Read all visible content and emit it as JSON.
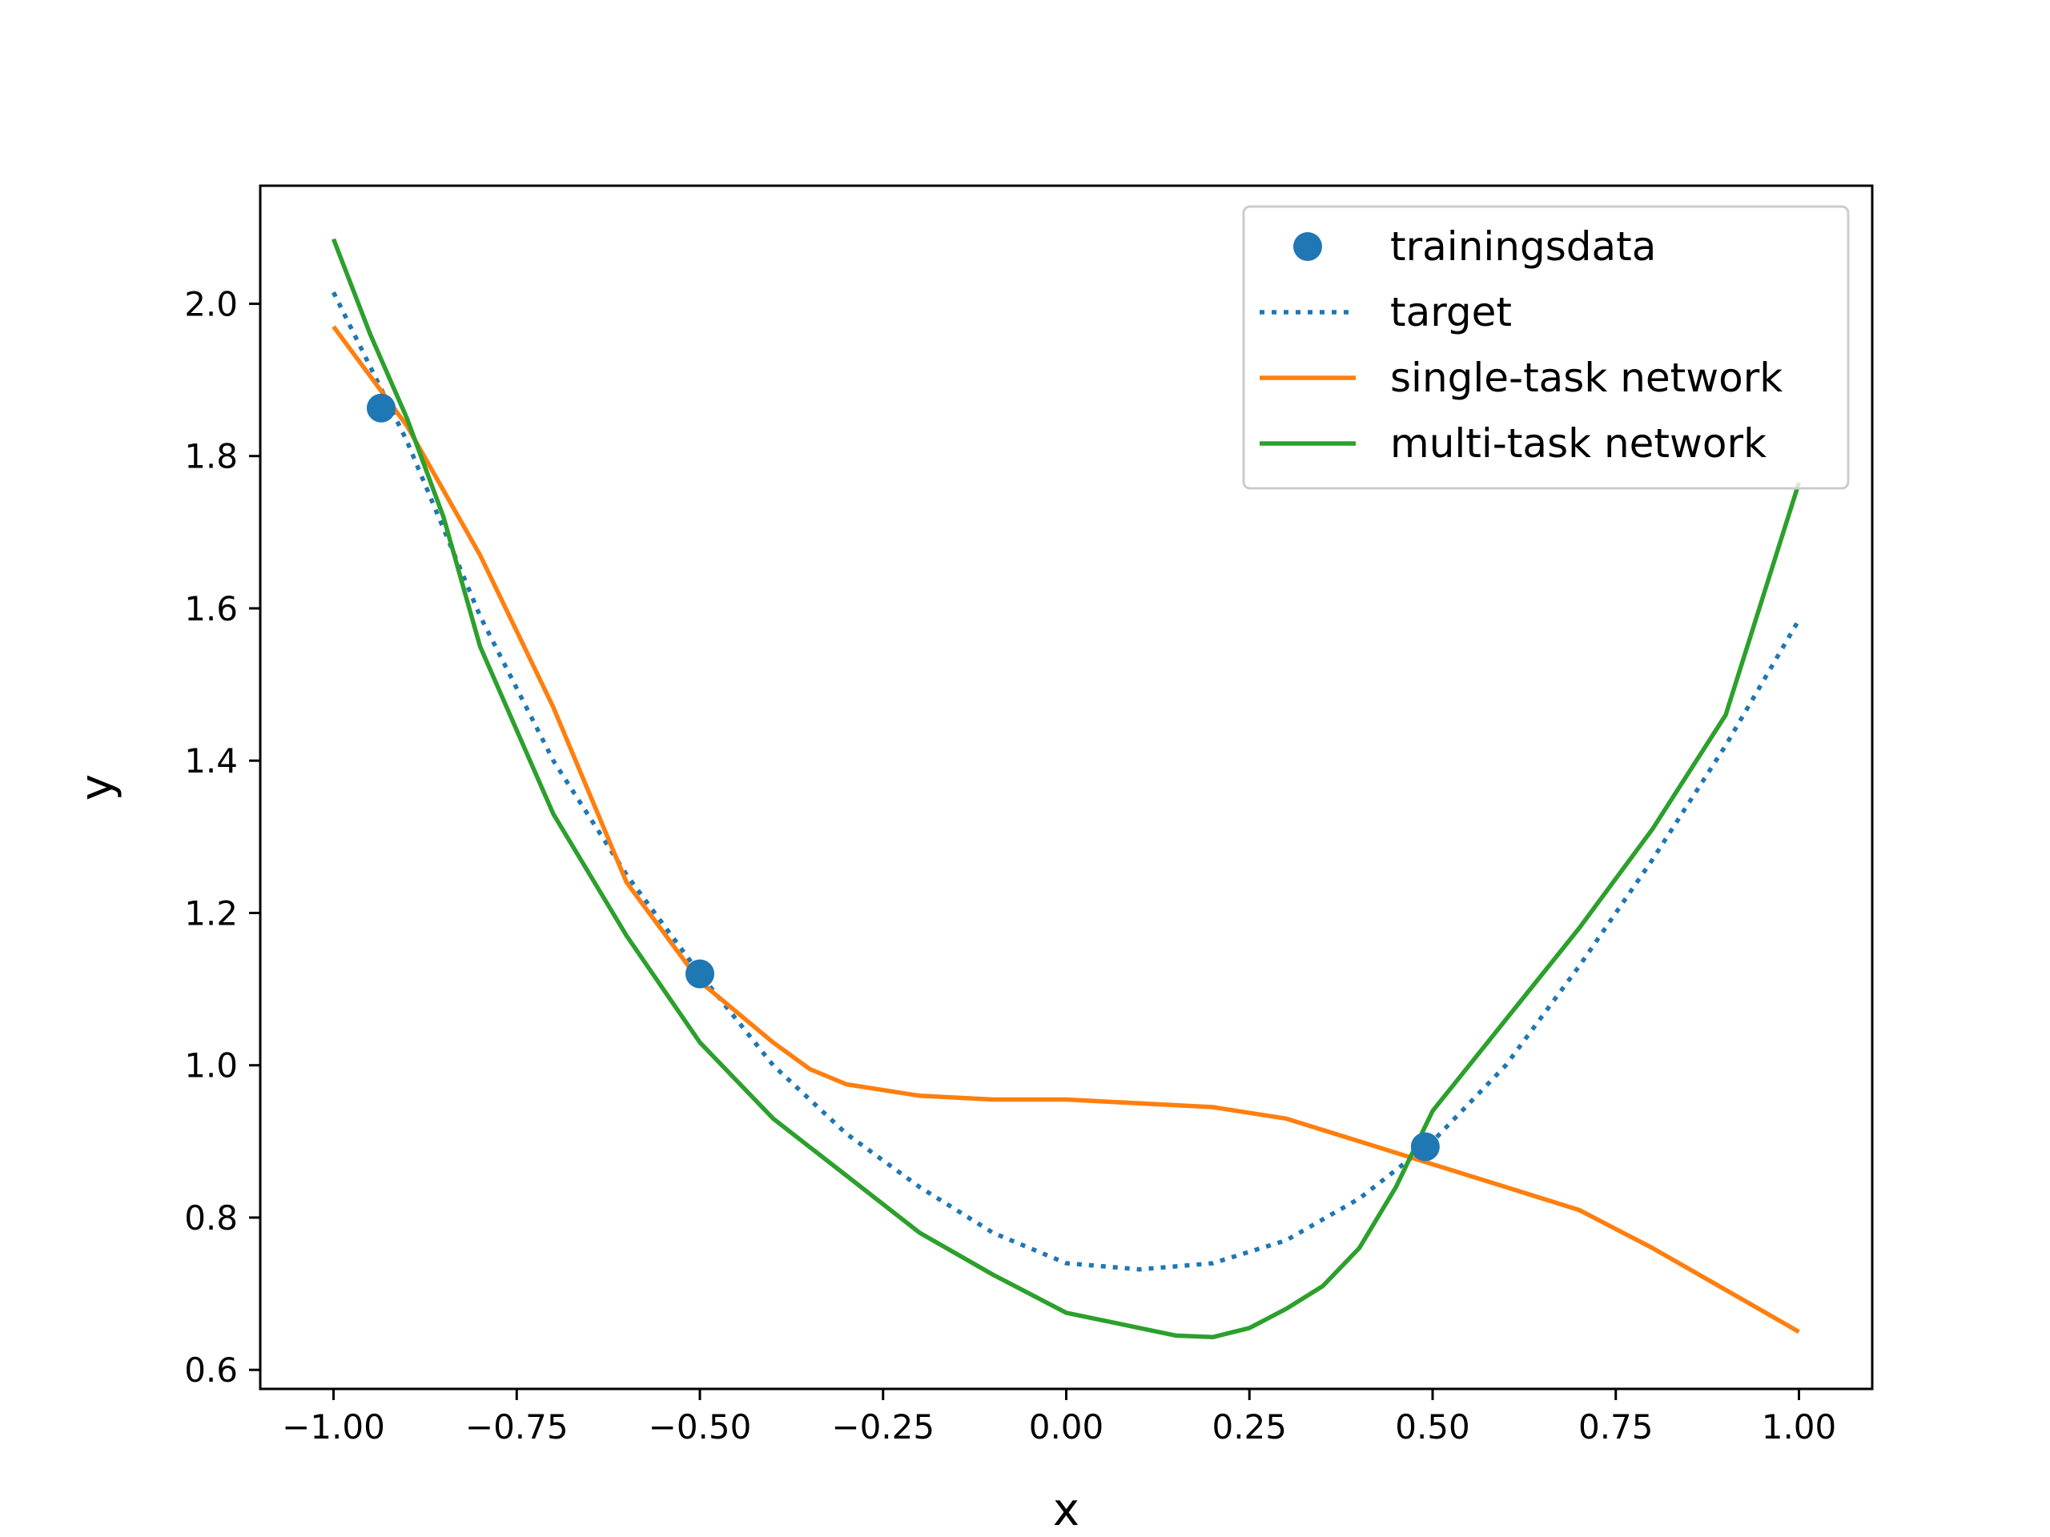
{
  "chart_data": {
    "type": "line",
    "xlabel": "x",
    "ylabel": "y",
    "xlim": [
      -1.1,
      1.1
    ],
    "ylim": [
      0.575,
      2.155
    ],
    "xticks": [
      -1.0,
      -0.75,
      -0.5,
      -0.25,
      0.0,
      0.25,
      0.5,
      0.75,
      1.0
    ],
    "xtick_labels": [
      "−1.00",
      "−0.75",
      "−0.50",
      "−0.25",
      "0.00",
      "0.25",
      "0.50",
      "0.75",
      "1.00"
    ],
    "yticks": [
      0.6,
      0.8,
      1.0,
      1.2,
      1.4,
      1.6,
      1.8,
      2.0
    ],
    "ytick_labels": [
      "0.6",
      "0.8",
      "1.0",
      "1.2",
      "1.4",
      "1.6",
      "1.8",
      "2.0"
    ],
    "grid": false,
    "legend_position": "top-right",
    "series": [
      {
        "name": "trainingsdata",
        "style": "markers",
        "color": "#1f77b4",
        "x": [
          -0.935,
          -0.5,
          0.49
        ],
        "y": [
          1.863,
          1.12,
          0.893
        ]
      },
      {
        "name": "target",
        "style": "dotted",
        "color": "#1f77b4",
        "x": [
          -1.0,
          -0.9,
          -0.8,
          -0.7,
          -0.6,
          -0.5,
          -0.4,
          -0.3,
          -0.2,
          -0.1,
          0.0,
          0.1,
          0.2,
          0.3,
          0.4,
          0.5,
          0.6,
          0.7,
          0.8,
          0.9,
          1.0
        ],
        "y": [
          2.015,
          1.82,
          1.59,
          1.4,
          1.25,
          1.12,
          1.0,
          0.91,
          0.84,
          0.78,
          0.74,
          0.732,
          0.74,
          0.77,
          0.825,
          0.9,
          1.0,
          1.13,
          1.27,
          1.42,
          1.585
        ]
      },
      {
        "name": "single-task network",
        "style": "solid",
        "color": "#ff7f0e",
        "x": [
          -1.0,
          -0.9,
          -0.8,
          -0.7,
          -0.6,
          -0.5,
          -0.4,
          -0.35,
          -0.3,
          -0.2,
          -0.1,
          0.0,
          0.1,
          0.2,
          0.3,
          0.4,
          0.5,
          0.6,
          0.7,
          0.8,
          0.9,
          1.0
        ],
        "y": [
          1.97,
          1.84,
          1.67,
          1.47,
          1.24,
          1.11,
          1.03,
          0.995,
          0.975,
          0.96,
          0.955,
          0.955,
          0.95,
          0.945,
          0.93,
          0.9,
          0.87,
          0.84,
          0.81,
          0.76,
          0.705,
          0.65
        ]
      },
      {
        "name": "multi-task network",
        "style": "solid",
        "color": "#2ca02c",
        "x": [
          -1.0,
          -0.95,
          -0.9,
          -0.85,
          -0.8,
          -0.7,
          -0.6,
          -0.5,
          -0.4,
          -0.3,
          -0.2,
          -0.1,
          0.0,
          0.1,
          0.15,
          0.2,
          0.25,
          0.3,
          0.35,
          0.4,
          0.45,
          0.5,
          0.55,
          0.6,
          0.7,
          0.8,
          0.9,
          1.0
        ],
        "y": [
          2.085,
          1.96,
          1.85,
          1.72,
          1.55,
          1.33,
          1.17,
          1.03,
          0.93,
          0.855,
          0.78,
          0.725,
          0.675,
          0.655,
          0.645,
          0.643,
          0.655,
          0.68,
          0.71,
          0.76,
          0.84,
          0.94,
          1.0,
          1.06,
          1.18,
          1.31,
          1.46,
          1.765
        ]
      }
    ]
  }
}
